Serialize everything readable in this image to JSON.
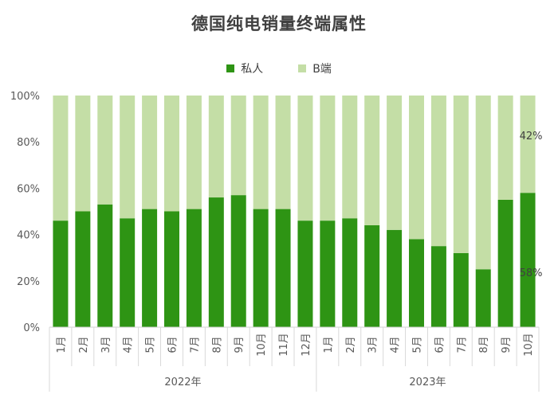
{
  "chart_data": {
    "type": "bar",
    "stacked": true,
    "percent_stacked": true,
    "title": "德国纯电销量终端属性",
    "legend_position": "top",
    "grid": false,
    "ylim": [
      0,
      100
    ],
    "yticks": [
      "0%",
      "20%",
      "40%",
      "60%",
      "80%",
      "100%"
    ],
    "categories": [
      "1月",
      "2月",
      "3月",
      "4月",
      "5月",
      "6月",
      "7月",
      "8月",
      "9月",
      "10月",
      "11月",
      "12月",
      "1月",
      "2月",
      "3月",
      "4月",
      "5月",
      "6月",
      "7月",
      "8月",
      "9月",
      "10月"
    ],
    "groups": [
      {
        "label": "2022年",
        "count": 12
      },
      {
        "label": "2023年",
        "count": 10
      }
    ],
    "series": [
      {
        "name": "私人",
        "color": "#2e9414",
        "values": [
          46,
          50,
          53,
          47,
          51,
          50,
          51,
          56,
          57,
          51,
          51,
          46,
          46,
          47,
          44,
          42,
          38,
          35,
          32,
          25,
          55,
          58
        ]
      },
      {
        "name": "B端",
        "color": "#c4dea6",
        "values": [
          54,
          50,
          47,
          53,
          49,
          50,
          49,
          44,
          43,
          49,
          49,
          54,
          54,
          53,
          56,
          58,
          62,
          65,
          68,
          75,
          45,
          42
        ]
      }
    ],
    "annotations": [
      {
        "text": "42%",
        "series": "B端",
        "category_index": 21
      },
      {
        "text": "58%",
        "series": "私人",
        "category_index": 21
      }
    ]
  }
}
